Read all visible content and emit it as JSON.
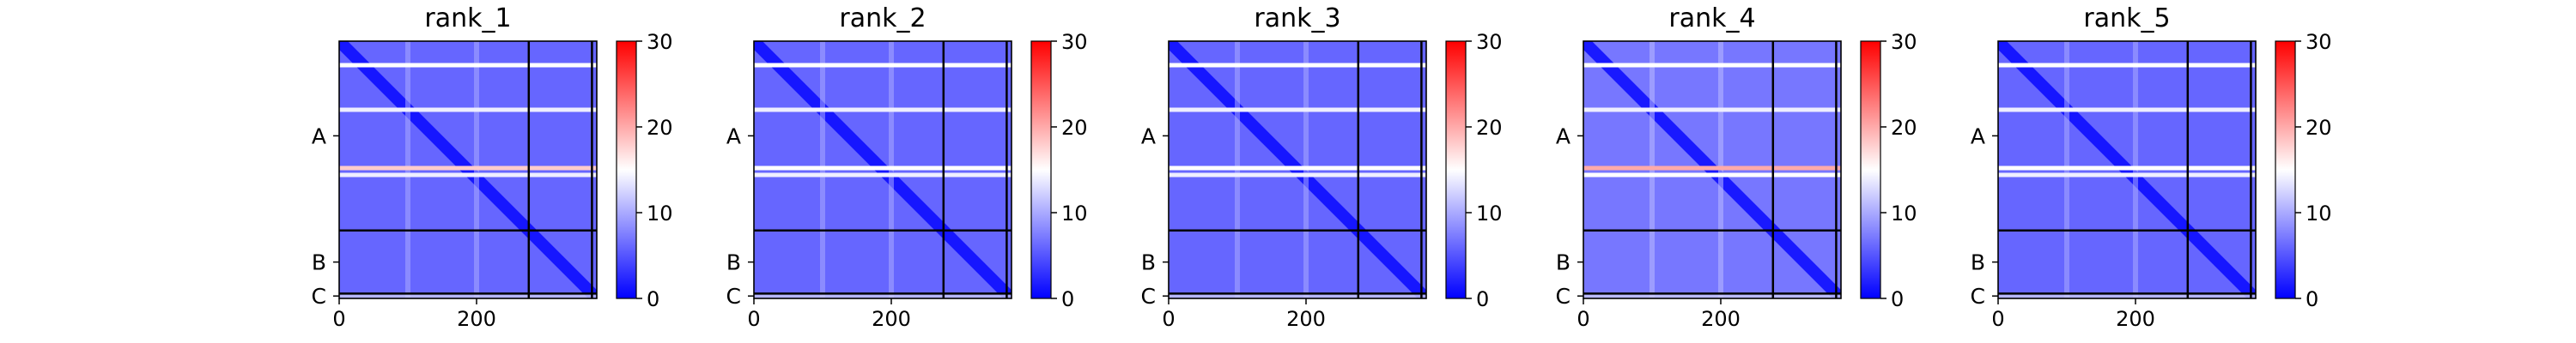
{
  "chart_data": [
    {
      "type": "heatmap",
      "title": "rank_1",
      "xlim": [
        0,
        375
      ],
      "x_ticks": [
        0,
        200
      ],
      "y_chain_labels": [
        "A",
        "B",
        "C"
      ],
      "chain_boundaries": [
        276,
        368
      ],
      "colorbar": {
        "min": 0,
        "max": 30,
        "ticks": [
          0,
          10,
          20,
          30
        ],
        "colormap": [
          "#0000ff",
          "#ffffff",
          "#ff0000"
        ]
      },
      "overall_value_level": 6,
      "hot_rows": [
        {
          "row": 35,
          "value": 15
        },
        {
          "row": 100,
          "value": 14
        },
        {
          "row": 185,
          "value": 18
        },
        {
          "row": 195,
          "value": 14
        }
      ],
      "hot_cols": [
        {
          "col": 100,
          "value": 10
        },
        {
          "col": 200,
          "value": 10
        }
      ]
    },
    {
      "type": "heatmap",
      "title": "rank_2",
      "xlim": [
        0,
        375
      ],
      "x_ticks": [
        0,
        200
      ],
      "y_chain_labels": [
        "A",
        "B",
        "C"
      ],
      "chain_boundaries": [
        276,
        368
      ],
      "colorbar": {
        "min": 0,
        "max": 30,
        "ticks": [
          0,
          10,
          20,
          30
        ],
        "colormap": [
          "#0000ff",
          "#ffffff",
          "#ff0000"
        ]
      },
      "overall_value_level": 6,
      "hot_rows": [
        {
          "row": 35,
          "value": 15
        },
        {
          "row": 100,
          "value": 14
        },
        {
          "row": 185,
          "value": 15
        },
        {
          "row": 195,
          "value": 14
        }
      ],
      "hot_cols": [
        {
          "col": 100,
          "value": 10
        },
        {
          "col": 200,
          "value": 10
        }
      ]
    },
    {
      "type": "heatmap",
      "title": "rank_3",
      "xlim": [
        0,
        375
      ],
      "x_ticks": [
        0,
        200
      ],
      "y_chain_labels": [
        "A",
        "B",
        "C"
      ],
      "chain_boundaries": [
        276,
        368
      ],
      "colorbar": {
        "min": 0,
        "max": 30,
        "ticks": [
          0,
          10,
          20,
          30
        ],
        "colormap": [
          "#0000ff",
          "#ffffff",
          "#ff0000"
        ]
      },
      "overall_value_level": 6,
      "hot_rows": [
        {
          "row": 35,
          "value": 15
        },
        {
          "row": 100,
          "value": 14
        },
        {
          "row": 185,
          "value": 15
        },
        {
          "row": 195,
          "value": 14
        }
      ],
      "hot_cols": [
        {
          "col": 100,
          "value": 10
        },
        {
          "col": 200,
          "value": 10
        }
      ]
    },
    {
      "type": "heatmap",
      "title": "rank_4",
      "xlim": [
        0,
        375
      ],
      "x_ticks": [
        0,
        200
      ],
      "y_chain_labels": [
        "A",
        "B",
        "C"
      ],
      "chain_boundaries": [
        276,
        368
      ],
      "colorbar": {
        "min": 0,
        "max": 30,
        "ticks": [
          0,
          10,
          20,
          30
        ],
        "colormap": [
          "#0000ff",
          "#ffffff",
          "#ff0000"
        ]
      },
      "overall_value_level": 7,
      "hot_rows": [
        {
          "row": 35,
          "value": 15
        },
        {
          "row": 100,
          "value": 14
        },
        {
          "row": 185,
          "value": 20
        },
        {
          "row": 195,
          "value": 15
        }
      ],
      "hot_cols": [
        {
          "col": 100,
          "value": 11
        },
        {
          "col": 200,
          "value": 11
        }
      ]
    },
    {
      "type": "heatmap",
      "title": "rank_5",
      "xlim": [
        0,
        375
      ],
      "x_ticks": [
        0,
        200
      ],
      "y_chain_labels": [
        "A",
        "B",
        "C"
      ],
      "chain_boundaries": [
        276,
        368
      ],
      "colorbar": {
        "min": 0,
        "max": 30,
        "ticks": [
          0,
          10,
          20,
          30
        ],
        "colormap": [
          "#0000ff",
          "#ffffff",
          "#ff0000"
        ]
      },
      "overall_value_level": 6,
      "hot_rows": [
        {
          "row": 35,
          "value": 15
        },
        {
          "row": 100,
          "value": 14
        },
        {
          "row": 185,
          "value": 15
        },
        {
          "row": 195,
          "value": 14
        }
      ],
      "hot_cols": [
        {
          "col": 100,
          "value": 10
        },
        {
          "col": 200,
          "value": 10
        }
      ]
    }
  ]
}
